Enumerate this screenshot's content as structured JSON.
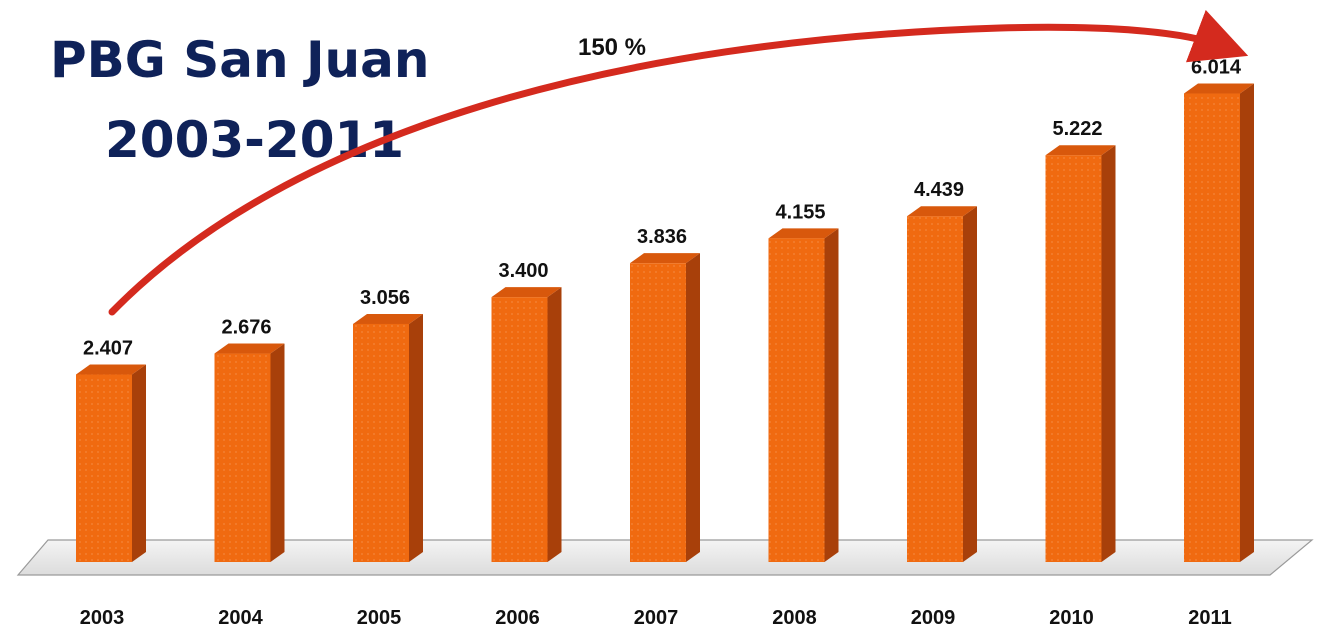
{
  "chart_data": {
    "type": "bar",
    "title_line1": "PBG San Juan",
    "title_line2": "2003-2011",
    "categories": [
      "2003",
      "2004",
      "2005",
      "2006",
      "2007",
      "2008",
      "2009",
      "2010",
      "2011"
    ],
    "values": [
      2407,
      2676,
      3056,
      3400,
      3836,
      4155,
      4439,
      5222,
      6014
    ],
    "value_labels": [
      "2.407",
      "2.676",
      "3.056",
      "3.400",
      "3.836",
      "4.155",
      "4.439",
      "5.222",
      "6.014"
    ],
    "annotation": "150 %",
    "ylim": [
      0,
      7000
    ],
    "grid": false,
    "colors": {
      "bar_front": "#f06a10",
      "bar_side": "#a8400a",
      "bar_top": "#d8580c",
      "arrow": "#d42a1e",
      "title": "#0f2259"
    }
  }
}
